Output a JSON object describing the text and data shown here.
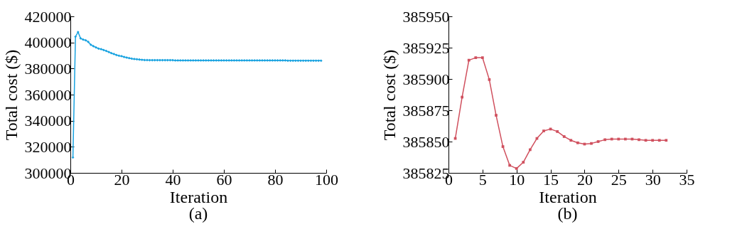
{
  "chart_data": [
    {
      "type": "line",
      "title": "(a)",
      "xlabel": "Iteration",
      "ylabel": "Total cost ($)",
      "marker": "diamond",
      "line_style": "solid",
      "grid": false,
      "legend": false,
      "x": [
        1,
        2,
        3,
        4,
        5,
        6,
        7,
        8,
        9,
        10,
        11,
        12,
        13,
        14,
        15,
        16,
        17,
        18,
        19,
        20,
        21,
        22,
        23,
        24,
        25,
        26,
        27,
        28,
        29,
        30,
        31,
        32,
        33,
        34,
        35,
        36,
        37,
        38,
        39,
        40,
        41,
        42,
        43,
        44,
        45,
        46,
        47,
        48,
        49,
        50,
        51,
        52,
        53,
        54,
        55,
        56,
        57,
        58,
        59,
        60,
        61,
        62,
        63,
        64,
        65,
        66,
        67,
        68,
        69,
        70,
        71,
        72,
        73,
        74,
        75,
        76,
        77,
        78,
        79,
        80,
        81,
        82,
        83,
        84,
        85,
        86,
        87,
        88,
        89,
        90,
        91,
        92,
        93,
        94,
        95,
        96,
        97,
        98
      ],
      "series": [
        {
          "color": "#1aa3e0",
          "values": [
            311800,
            404400,
            408000,
            403100,
            402200,
            401600,
            400400,
            398200,
            397100,
            396200,
            395300,
            394900,
            394200,
            393500,
            392700,
            391800,
            391100,
            390400,
            389800,
            389500,
            388900,
            388400,
            388000,
            387600,
            387300,
            387100,
            386900,
            386700,
            386500,
            386500,
            386400,
            386400,
            386400,
            386400,
            386400,
            386400,
            386400,
            386400,
            386400,
            386400,
            386200,
            386200,
            386200,
            386200,
            386200,
            386200,
            386200,
            386200,
            386200,
            386200,
            386200,
            386200,
            386200,
            386200,
            386200,
            386200,
            386200,
            386200,
            386200,
            386200,
            386200,
            386200,
            386200,
            386200,
            386200,
            386200,
            386200,
            386200,
            386200,
            386200,
            386200,
            386200,
            386200,
            386200,
            386200,
            386200,
            386200,
            386200,
            386200,
            386200,
            386200,
            386200,
            386200,
            386200,
            386000,
            386000,
            386000,
            386000,
            386000,
            386000,
            386000,
            386000,
            386000,
            386000,
            386000,
            386000,
            386000,
            386000
          ]
        }
      ],
      "xlim": [
        0,
        100
      ],
      "xticks": [
        0,
        20,
        40,
        60,
        80,
        100
      ],
      "ylim": [
        300000,
        420000
      ],
      "yticks": [
        300000,
        320000,
        340000,
        360000,
        380000,
        400000,
        420000
      ]
    },
    {
      "type": "line",
      "title": "(b)",
      "xlabel": "Iteration",
      "ylabel": "Total cost ($)",
      "marker": "square",
      "line_style": "solid",
      "grid": false,
      "legend": false,
      "x": [
        1,
        2,
        3,
        4,
        5,
        6,
        7,
        8,
        9,
        10,
        11,
        12,
        13,
        14,
        15,
        16,
        17,
        18,
        19,
        20,
        21,
        22,
        23,
        24,
        25,
        26,
        27,
        28,
        29,
        30,
        31,
        32
      ],
      "series": [
        {
          "color": "#d0505e",
          "values": [
            385852.5,
            385885.5,
            385915,
            385917,
            385917,
            385899.5,
            385871,
            385846,
            385831,
            385828.5,
            385833.5,
            385843.5,
            385852.5,
            385858.5,
            385860,
            385858,
            385854,
            385851,
            385849,
            385848,
            385848.5,
            385850,
            385851.5,
            385852,
            385852,
            385852,
            385852,
            385851.5,
            385851,
            385851,
            385851,
            385851
          ]
        }
      ],
      "xlim": [
        0,
        35
      ],
      "xticks": [
        0,
        5,
        10,
        15,
        20,
        25,
        30,
        35
      ],
      "ylim": [
        385825,
        385950
      ],
      "yticks": [
        385825,
        385850,
        385875,
        385900,
        385925,
        385950
      ]
    }
  ]
}
